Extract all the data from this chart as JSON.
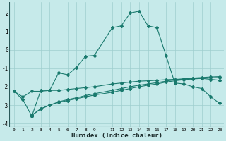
{
  "xlabel": "Humidex (Indice chaleur)",
  "background_color": "#c6eaea",
  "grid_color": "#9ecece",
  "line_color": "#1a7a6e",
  "xlim": [
    -0.5,
    23.5
  ],
  "ylim": [
    -4.2,
    2.6
  ],
  "yticks": [
    -4,
    -3,
    -2,
    -1,
    0,
    1,
    2
  ],
  "xticks": [
    0,
    1,
    2,
    3,
    4,
    5,
    6,
    7,
    8,
    9,
    11,
    12,
    13,
    14,
    15,
    16,
    17,
    18,
    19,
    20,
    21,
    22,
    23
  ],
  "line1_x": [
    0,
    1,
    2,
    3,
    4,
    5,
    6,
    7,
    8,
    9,
    11,
    12,
    13,
    14,
    15,
    16,
    17,
    18,
    19,
    20,
    21,
    22,
    23
  ],
  "line1_y": [
    -2.25,
    -2.55,
    -2.25,
    -2.25,
    -2.2,
    -2.2,
    -2.15,
    -2.1,
    -2.05,
    -2.0,
    -1.85,
    -1.8,
    -1.75,
    -1.7,
    -1.68,
    -1.65,
    -1.62,
    -1.6,
    -1.58,
    -1.56,
    -1.55,
    -1.6,
    -1.65
  ],
  "line2_x": [
    0,
    1,
    2,
    3,
    4,
    5,
    6,
    7,
    8,
    9,
    11,
    12,
    13,
    14,
    15,
    16,
    17,
    18,
    19,
    20,
    21,
    22,
    23
  ],
  "line2_y": [
    -2.25,
    -2.7,
    -3.6,
    -2.2,
    -2.2,
    -1.25,
    -1.35,
    -0.95,
    -0.35,
    -0.3,
    1.2,
    1.3,
    2.0,
    2.1,
    1.3,
    1.2,
    -0.3,
    -1.8,
    -1.85,
    -2.0,
    -2.1,
    -2.55,
    -2.9
  ],
  "line3_x": [
    2,
    3,
    4,
    5,
    6,
    7,
    8,
    9,
    11,
    12,
    13,
    14,
    15,
    16,
    17,
    18,
    19,
    20,
    21,
    22,
    23
  ],
  "line3_y": [
    -3.55,
    -3.2,
    -3.0,
    -2.85,
    -2.75,
    -2.65,
    -2.55,
    -2.45,
    -2.3,
    -2.2,
    -2.1,
    -2.0,
    -1.92,
    -1.85,
    -1.75,
    -1.68,
    -1.62,
    -1.58,
    -1.55,
    -1.52,
    -1.5
  ],
  "line4_x": [
    2,
    3,
    4,
    5,
    6,
    7,
    8,
    9,
    11,
    12,
    13,
    14,
    15,
    16,
    17,
    18,
    19,
    20,
    21,
    22,
    23
  ],
  "line4_y": [
    -3.55,
    -3.2,
    -3.0,
    -2.82,
    -2.7,
    -2.6,
    -2.48,
    -2.38,
    -2.2,
    -2.1,
    -2.0,
    -1.92,
    -1.85,
    -1.78,
    -1.7,
    -1.62,
    -1.58,
    -1.53,
    -1.5,
    -1.47,
    -1.45
  ]
}
